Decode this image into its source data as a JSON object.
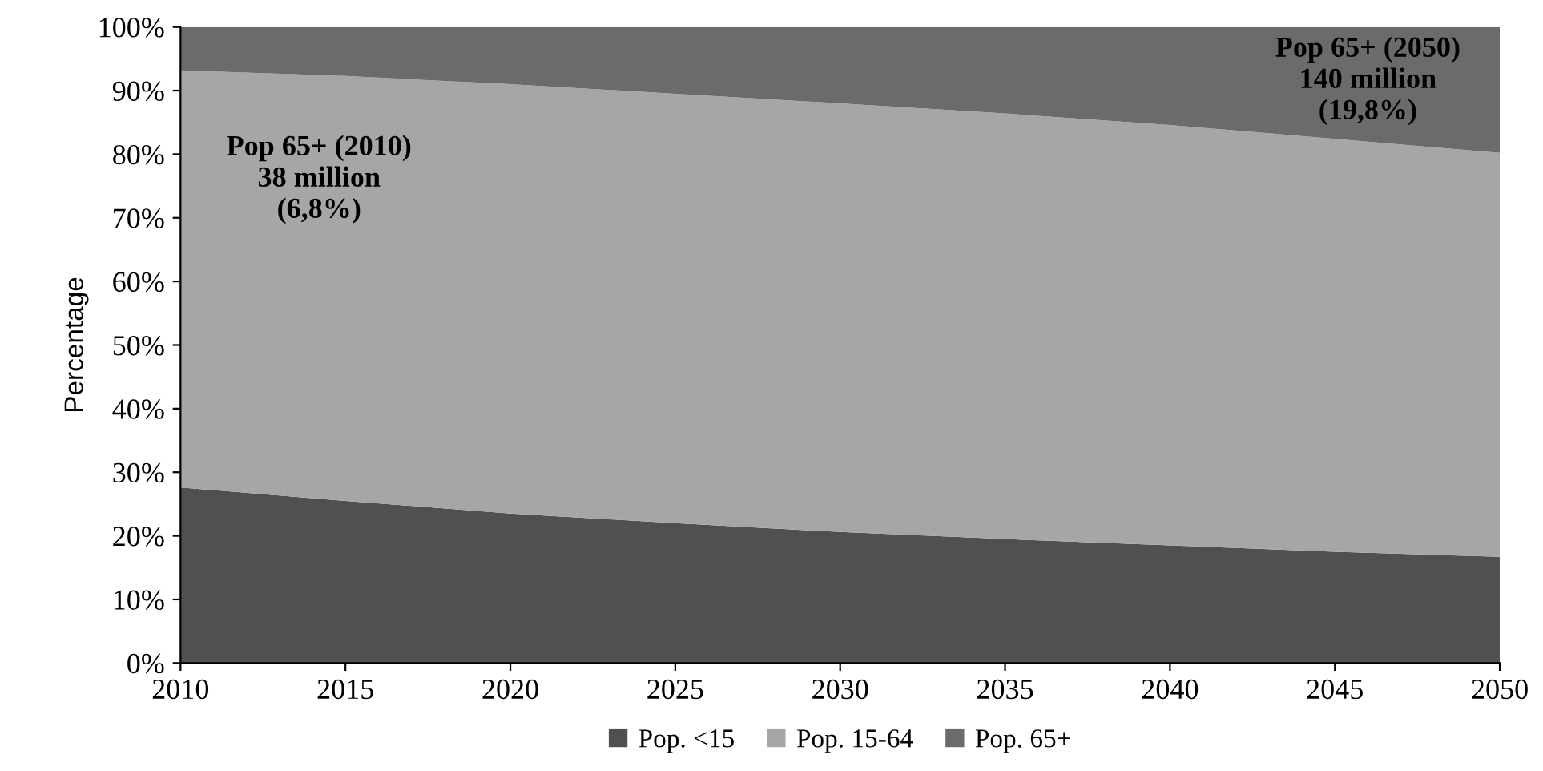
{
  "chart_data": {
    "type": "area",
    "stacked": true,
    "ylabel": "Percentage",
    "x": [
      2010,
      2015,
      2020,
      2025,
      2030,
      2035,
      2040,
      2045,
      2050
    ],
    "series": [
      {
        "name": "Pop. <15",
        "color": "#505050",
        "values": [
          27.6,
          25.5,
          23.5,
          22.0,
          20.6,
          19.5,
          18.5,
          17.5,
          16.7
        ]
      },
      {
        "name": "Pop. 15-64",
        "color": "#a6a6a6",
        "values": [
          65.6,
          66.8,
          67.5,
          67.5,
          67.4,
          66.9,
          66.1,
          64.9,
          63.5
        ]
      },
      {
        "name": "Pop. 65+",
        "color": "#6b6b6b",
        "values": [
          6.8,
          7.7,
          9.0,
          10.5,
          12.0,
          13.6,
          15.4,
          17.6,
          19.8
        ]
      }
    ],
    "xlim": [
      2010,
      2050
    ],
    "xticks": [
      2010,
      2015,
      2020,
      2025,
      2030,
      2035,
      2040,
      2045,
      2050
    ],
    "ylim": [
      0,
      100
    ],
    "yticks": [
      {
        "value": 0,
        "label": "0%"
      },
      {
        "value": 10,
        "label": "10%"
      },
      {
        "value": 20,
        "label": "20%"
      },
      {
        "value": 30,
        "label": "30%"
      },
      {
        "value": 40,
        "label": "40%"
      },
      {
        "value": 50,
        "label": "50%"
      },
      {
        "value": 60,
        "label": "60%"
      },
      {
        "value": 70,
        "label": "70%"
      },
      {
        "value": 80,
        "label": "80%"
      },
      {
        "value": 90,
        "label": "90%"
      },
      {
        "value": 100,
        "label": "100%"
      }
    ],
    "annotations": [
      "Pop 65+ (2010)\n38 million\n(6,8%)",
      "Pop 65+ (2050)\n140 million\n(19,8%)"
    ],
    "grid": false,
    "legend": "bottom"
  }
}
